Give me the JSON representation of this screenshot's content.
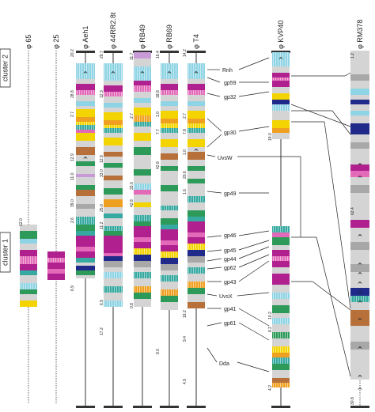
{
  "clusters": [
    {
      "id": "cluster-2",
      "label": "cluster 2"
    },
    {
      "id": "cluster-1",
      "label": "cluster 1"
    }
  ],
  "phages": [
    {
      "id": "phi-65",
      "label": "φ 65"
    },
    {
      "id": "phi-25",
      "label": "φ 25"
    },
    {
      "id": "aeh1",
      "label": "φ Aeh1"
    },
    {
      "id": "44rr2",
      "label": "φ 44RR2.8t"
    },
    {
      "id": "rb49",
      "label": "φ RB49"
    },
    {
      "id": "rb69",
      "label": "φ RB69"
    },
    {
      "id": "t4",
      "label": "φ T4"
    },
    {
      "id": "kvp40",
      "label": "φ KVP40"
    },
    {
      "id": "rm378",
      "label": "φ RM378"
    }
  ],
  "genes": [
    {
      "id": "rnh",
      "label": "Rnh"
    },
    {
      "id": "gp59",
      "label": "gp59"
    },
    {
      "id": "gp32",
      "label": "gp32"
    },
    {
      "id": "gp30",
      "label": "gp30"
    },
    {
      "id": "uvsw",
      "label": "UvsW"
    },
    {
      "id": "gp49",
      "label": "gp49"
    },
    {
      "id": "gp46",
      "label": "gp46"
    },
    {
      "id": "gp45",
      "label": "gp45"
    },
    {
      "id": "gp44",
      "label": "gp44"
    },
    {
      "id": "gp62",
      "label": "gp62"
    },
    {
      "id": "gp43",
      "label": "gp43"
    },
    {
      "id": "uvsx",
      "label": "UvsX"
    },
    {
      "id": "gp41",
      "label": "gp41"
    },
    {
      "id": "gp61",
      "label": "gp61"
    },
    {
      "id": "dda",
      "label": "Dda"
    }
  ],
  "numbers": {
    "aeh1": [
      "20.2",
      "28.8",
      "2.7",
      "12.9",
      "11.0",
      "39.0",
      "2.6",
      "6.9"
    ],
    "44rr2": [
      "29.7",
      "12.3",
      "12.9",
      "33.0",
      "25.0",
      "11.2",
      "6.9",
      "17.2"
    ],
    "rb49": [
      "11.7",
      "2.7",
      "33.0",
      "42.8",
      "0.8"
    ],
    "rb69": [
      "16.4",
      "18.8",
      "1.0",
      "7.7",
      "42.8",
      "9.0"
    ],
    "t4": [
      "14.2",
      "2.7",
      "7.8",
      "1.0",
      "20.6",
      "1.6",
      "19.2",
      "9.4",
      "4.9"
    ],
    "kvp40": [
      "19.0",
      "10.2",
      "8.2",
      "4.2"
    ],
    "rm378": [
      "1.2",
      "62.4",
      "30.8"
    ],
    "phi65": [
      "12.0"
    ]
  },
  "colors": {
    "magenta": "#b0208f",
    "cyan": "#8fd4e4",
    "yellow": "#f4d400",
    "orange": "#f0a020",
    "navy": "#1f2a8a",
    "green": "#2e9a5a",
    "teal": "#36a9a0",
    "brown": "#b8703a",
    "lightgray": "#d4d4d4",
    "gray": "#a8a8a8",
    "pink": "#e26ab8",
    "lilac": "#c89ad8",
    "black": "#222222"
  }
}
